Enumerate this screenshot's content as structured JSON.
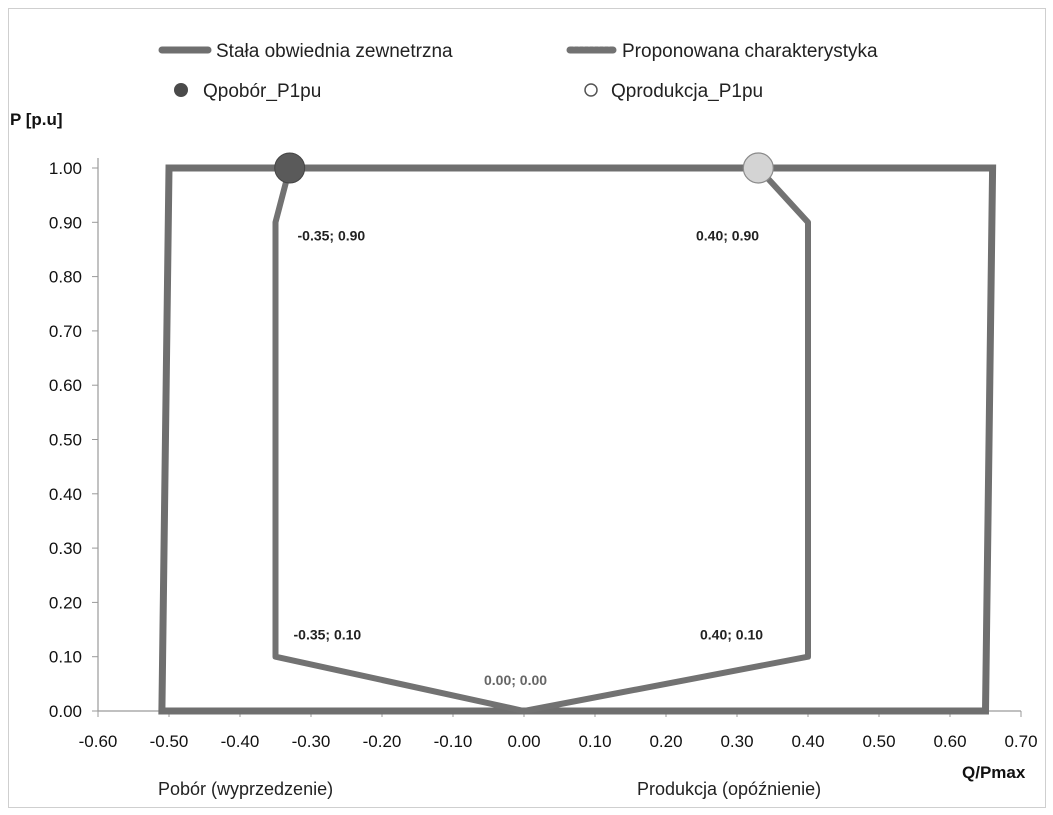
{
  "chart_data": {
    "type": "line",
    "title": "",
    "xlabel": "Q/Pmax",
    "ylabel": "P [p.u]",
    "xlim": [
      -0.6,
      0.7
    ],
    "ylim": [
      0.0,
      1.0
    ],
    "x_ticks": [
      "-0.60",
      "-0.50",
      "-0.40",
      "-0.30",
      "-0.20",
      "-0.10",
      "0.00",
      "0.10",
      "0.20",
      "0.30",
      "0.40",
      "0.50",
      "0.60",
      "0.70"
    ],
    "y_ticks": [
      "0.00",
      "0.10",
      "0.20",
      "0.30",
      "0.40",
      "0.50",
      "0.60",
      "0.70",
      "0.80",
      "0.90",
      "1.00"
    ],
    "legend_position": "top",
    "series": [
      {
        "name": "Stała obwiednia zewnetrzna",
        "kind": "line",
        "color": "#6f6f6f",
        "points": [
          [
            -0.51,
            0.0
          ],
          [
            -0.5,
            1.0
          ],
          [
            0.66,
            1.0
          ],
          [
            0.65,
            0.0
          ],
          [
            -0.51,
            0.0
          ]
        ]
      },
      {
        "name": "Proponowana charakterystyka",
        "kind": "line",
        "color": "#727272",
        "points": [
          [
            -0.33,
            1.0
          ],
          [
            -0.35,
            0.9
          ],
          [
            -0.35,
            0.1
          ],
          [
            0.0,
            0.0
          ],
          [
            0.4,
            0.1
          ],
          [
            0.4,
            0.9
          ],
          [
            0.33,
            1.0
          ]
        ]
      },
      {
        "name": "Qpobór_P1pu",
        "kind": "marker",
        "color": "#4a4a4a",
        "points": [
          [
            -0.33,
            1.0
          ]
        ]
      },
      {
        "name": "Qprodukcja_P1pu",
        "kind": "marker",
        "color": "#cfcfcf",
        "points": [
          [
            0.33,
            1.0
          ]
        ]
      }
    ],
    "annotations": [
      {
        "text": "-0.35; 0.90",
        "x": -0.35,
        "y": 0.9
      },
      {
        "text": "0.40; 0.90",
        "x": 0.4,
        "y": 0.9
      },
      {
        "text": "-0.35; 0.10",
        "x": -0.35,
        "y": 0.1
      },
      {
        "text": "0.40; 0.10",
        "x": 0.4,
        "y": 0.1
      },
      {
        "text": "0.00; 0.00",
        "x": 0.0,
        "y": 0.0
      }
    ],
    "side_labels": {
      "left": "Pobór (wyprzedzenie)",
      "right": "Produkcja (opóźnienie)"
    }
  }
}
